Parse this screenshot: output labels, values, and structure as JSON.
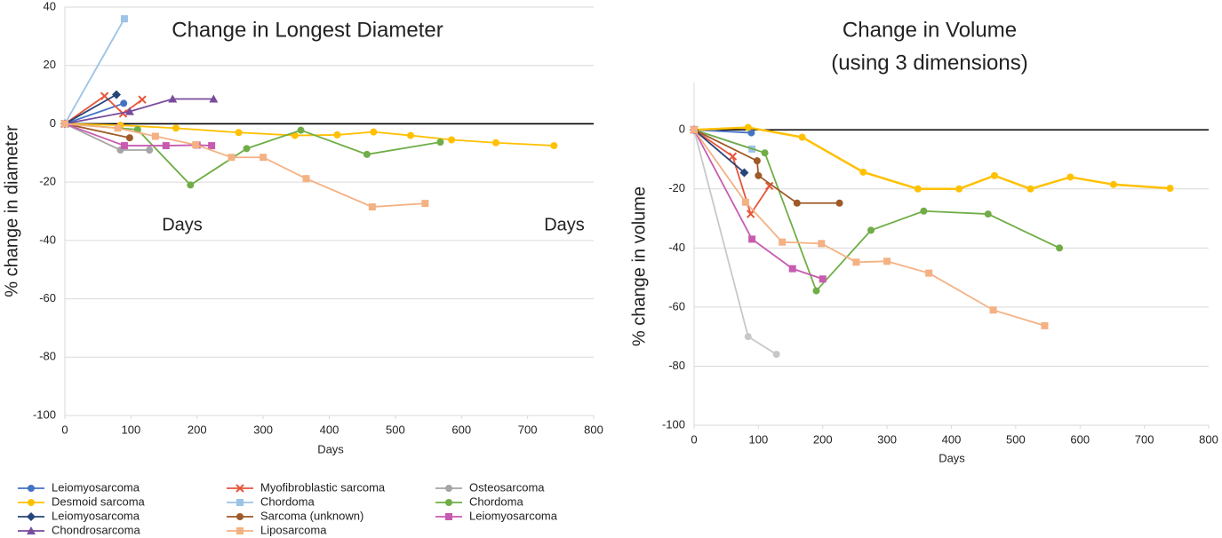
{
  "chart_data": [
    {
      "type": "line",
      "title": "Change in Longest Diameter",
      "x_label": "Days",
      "y_label": "% change in diameter",
      "annotations": [
        "Days",
        "Days"
      ],
      "xlim": [
        0,
        800
      ],
      "xticks": [
        0,
        100,
        200,
        300,
        400,
        500,
        600,
        700,
        800
      ],
      "ylim": [
        -100,
        40
      ],
      "yticks": [
        40,
        20,
        0,
        -20,
        -40,
        -60,
        -80,
        -100
      ],
      "grid": true,
      "series": [
        {
          "name": "Leiomyosarcoma",
          "color": "#4472c4",
          "marker": "circle",
          "x": [
            0,
            89
          ],
          "values": [
            0,
            7
          ]
        },
        {
          "name": "Myofibroblastic sarcoma",
          "color": "#e8543a",
          "marker": "x",
          "x": [
            0,
            60,
            88,
            117
          ],
          "values": [
            0,
            9.5,
            3.5,
            8.3
          ]
        },
        {
          "name": "Osteosarcoma",
          "color": "#a5a5a5",
          "marker": "circle",
          "x": [
            0,
            84,
            128
          ],
          "values": [
            0,
            -9,
            -9
          ]
        },
        {
          "name": "Desmoid sarcoma",
          "color": "#ffc000",
          "marker": "circle",
          "x": [
            0,
            84,
            168,
            263,
            348,
            412,
            467,
            523,
            585,
            652,
            740
          ],
          "values": [
            0,
            -0.5,
            -1.5,
            -3,
            -4,
            -3.8,
            -2.8,
            -4,
            -5.5,
            -6.5,
            -7.5
          ]
        },
        {
          "name": "Chordoma",
          "color": "#9dc3e6",
          "marker": "square",
          "x": [
            0,
            90
          ],
          "values": [
            0,
            36
          ]
        },
        {
          "name": "Chordoma",
          "color": "#70ad47",
          "marker": "circle",
          "x": [
            0,
            110,
            190,
            275,
            357,
            457,
            568
          ],
          "values": [
            0,
            -2,
            -21,
            -8.5,
            -2.2,
            -10.5,
            -6.3
          ]
        },
        {
          "name": "Leiomyosarcoma",
          "color": "#264478",
          "marker": "diamond",
          "x": [
            0,
            78
          ],
          "values": [
            0,
            10
          ]
        },
        {
          "name": "Sarcoma (unknown)",
          "color": "#9e5a28",
          "marker": "circle",
          "x": [
            0,
            98
          ],
          "values": [
            0,
            -4.8
          ]
        },
        {
          "name": "Leiomyosarcoma",
          "color": "#c75bb0",
          "marker": "square",
          "x": [
            0,
            90,
            153,
            200,
            222
          ],
          "values": [
            0,
            -7.5,
            -7.5,
            -7.3,
            -7.5
          ]
        },
        {
          "name": "Chondrosarcoma",
          "color": "#7a4c9c",
          "marker": "triangle",
          "x": [
            0,
            98,
            163,
            225
          ],
          "values": [
            0,
            4.2,
            8.5,
            8.5
          ]
        },
        {
          "name": "Liposarcoma",
          "color": "#f4b183",
          "marker": "square",
          "x": [
            0,
            80,
            137,
            198,
            252,
            300,
            365,
            465,
            545
          ],
          "values": [
            0,
            -1.5,
            -4.3,
            -7.2,
            -11.5,
            -11.5,
            -18.8,
            -28.5,
            -27.3
          ]
        }
      ]
    },
    {
      "type": "line",
      "title": "Change in Volume",
      "subtitle": "(using 3 dimensions)",
      "x_label": "Days",
      "y_label": "% change in volume",
      "xlim": [
        0,
        800
      ],
      "xticks": [
        0,
        100,
        200,
        300,
        400,
        500,
        600,
        700,
        800
      ],
      "ylim": [
        -100,
        16
      ],
      "yticks": [
        0,
        -20,
        -40,
        -60,
        -80,
        -100
      ],
      "grid": true,
      "series": [
        {
          "name": "Leiomyosarcoma",
          "color": "#4472c4",
          "marker": "circle",
          "x": [
            0,
            89
          ],
          "values": [
            0,
            -1
          ]
        },
        {
          "name": "Myofibroblastic sarcoma",
          "color": "#e8543a",
          "marker": "x",
          "x": [
            0,
            60,
            88,
            117
          ],
          "values": [
            0,
            -9,
            -28.5,
            -19
          ]
        },
        {
          "name": "Osteosarcoma",
          "color": "#c8c8c8",
          "marker": "circle",
          "x": [
            0,
            84,
            128
          ],
          "values": [
            0,
            -70,
            -76
          ]
        },
        {
          "name": "Desmoid sarcoma",
          "color": "#ffc000",
          "marker": "circle",
          "x": [
            0,
            84,
            168,
            263,
            348,
            412,
            467,
            523,
            585,
            652,
            740
          ],
          "values": [
            0,
            0.8,
            -2.5,
            -14.3,
            -20,
            -20,
            -15.5,
            -20,
            -16,
            -18.5,
            -19.8
          ]
        },
        {
          "name": "Chordoma",
          "color": "#9dc3e6",
          "marker": "square",
          "x": [
            0,
            90
          ],
          "values": [
            0,
            -6.5
          ]
        },
        {
          "name": "Chordoma",
          "color": "#70ad47",
          "marker": "circle",
          "x": [
            0,
            110,
            190,
            275,
            357,
            457,
            568
          ],
          "values": [
            0,
            -7.8,
            -54.5,
            -34,
            -27.5,
            -28.5,
            -40
          ]
        },
        {
          "name": "Leiomyosarcoma",
          "color": "#264478",
          "marker": "diamond",
          "x": [
            0,
            78
          ],
          "values": [
            0,
            -14.5
          ]
        },
        {
          "name": "Sarcoma (unknown)",
          "color": "#9e5a28",
          "marker": "circle",
          "x": [
            0,
            98,
            100,
            160,
            226
          ],
          "values": [
            0,
            -10.5,
            -15.5,
            -24.8,
            -24.8
          ]
        },
        {
          "name": "Leiomyosarcoma",
          "color": "#c75bb0",
          "marker": "square",
          "x": [
            0,
            90,
            153,
            200
          ],
          "values": [
            0,
            -37,
            -47,
            -50.5
          ]
        },
        {
          "name": "Liposarcoma",
          "color": "#f4b183",
          "marker": "square",
          "x": [
            0,
            80,
            137,
            198,
            252,
            300,
            365,
            465,
            545
          ],
          "values": [
            0,
            -24.5,
            -38,
            -38.5,
            -44.8,
            -44.5,
            -48.5,
            -61,
            -66.3
          ]
        }
      ]
    }
  ]
}
